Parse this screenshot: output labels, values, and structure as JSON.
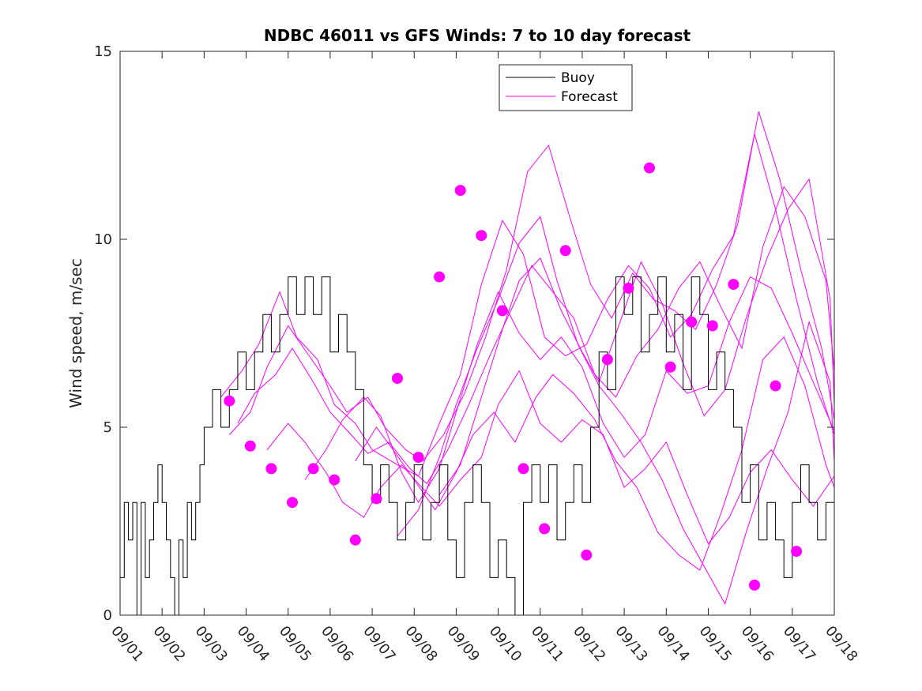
{
  "chart_data": {
    "type": "line",
    "title": "NDBC 46011 vs GFS Winds: 7 to 10 day forecast",
    "xlabel": "",
    "ylabel": "Wind speed, m/sec",
    "xlim": [
      0,
      17
    ],
    "ylim": [
      0,
      15
    ],
    "yticks": [
      0,
      5,
      10,
      15
    ],
    "yticklabels": [
      "0",
      "5",
      "10",
      "15"
    ],
    "xticks": [
      0,
      1,
      2,
      3,
      4,
      5,
      6,
      7,
      8,
      9,
      10,
      11,
      12,
      13,
      14,
      15,
      16,
      17
    ],
    "xticklabels": [
      "09/01",
      "09/02",
      "09/03",
      "09/04",
      "09/05",
      "09/06",
      "09/07",
      "09/08",
      "09/09",
      "09/10",
      "09/11",
      "09/12",
      "09/13",
      "09/14",
      "09/15",
      "09/16",
      "09/17",
      "09/18"
    ],
    "grid": false,
    "legend": {
      "location": "top-center",
      "entries": [
        "Buoy",
        "Forecast"
      ]
    },
    "colors": {
      "buoy": "#000000",
      "forecast": "#ff00ff",
      "axes": "#262626"
    },
    "series": [
      {
        "name": "Buoy",
        "style": "step",
        "x": [
          0,
          0.1,
          0.2,
          0.3,
          0.4,
          0.5,
          0.6,
          0.7,
          0.8,
          0.9,
          1.0,
          1.1,
          1.2,
          1.3,
          1.4,
          1.5,
          1.6,
          1.7,
          1.8,
          1.9,
          2.0,
          2.2,
          2.4,
          2.6,
          2.8,
          3.0,
          3.2,
          3.4,
          3.6,
          3.8,
          4.0,
          4.2,
          4.4,
          4.6,
          4.8,
          5.0,
          5.2,
          5.4,
          5.6,
          5.8,
          6.0,
          6.2,
          6.4,
          6.6,
          6.8,
          7.0,
          7.2,
          7.4,
          7.6,
          7.8,
          8.0,
          8.2,
          8.4,
          8.6,
          8.8,
          9.0,
          9.2,
          9.4,
          9.6,
          9.8,
          10.0,
          10.2,
          10.4,
          10.6,
          10.8,
          11.0,
          11.2,
          11.4,
          11.6,
          11.8,
          12.0,
          12.2,
          12.4,
          12.6,
          12.8,
          13.0,
          13.2,
          13.4,
          13.6,
          13.8,
          14.0,
          14.2,
          14.4,
          14.6,
          14.8,
          15.0,
          15.2,
          15.4,
          15.6,
          15.8,
          16.0,
          16.2,
          16.4,
          16.6,
          16.8,
          17.0
        ],
        "values": [
          1,
          3,
          2,
          3,
          0,
          3,
          1,
          2,
          3,
          4,
          3,
          2,
          1,
          0,
          2,
          1,
          3,
          2,
          3,
          4,
          5,
          6,
          5,
          6,
          7,
          6,
          7,
          8,
          7,
          8,
          9,
          8,
          9,
          8,
          9,
          7,
          8,
          7,
          6,
          4,
          3,
          4,
          3,
          2,
          3,
          4,
          2,
          3,
          4,
          2,
          1,
          3,
          4,
          3,
          1,
          2,
          1,
          0,
          3,
          4,
          3,
          4,
          2,
          3,
          4,
          3,
          5,
          7,
          6,
          9,
          8,
          9,
          7,
          8,
          9,
          7,
          8,
          6,
          9,
          8,
          6,
          7,
          6,
          5,
          3,
          4,
          2,
          3,
          2,
          1,
          3,
          4,
          3,
          2,
          3,
          4
        ]
      }
    ],
    "forecast_runs": [
      {
        "x": [
          2.4,
          2.9,
          3.3,
          3.8,
          4.2,
          4.7,
          5.1,
          5.6,
          6.0,
          6.6,
          7.1,
          7.6,
          8.1,
          8.6,
          9.1,
          9.6,
          10.1,
          10.6,
          11.1,
          11.6,
          12.1,
          12.6,
          13.1,
          13.6,
          14.1,
          14.6,
          15.1,
          15.6,
          16.1,
          16.6,
          17.0
        ],
        "y": [
          5.8,
          6.5,
          7.2,
          8.6,
          7.4,
          6.8,
          5.6,
          5.1,
          4.4,
          4.0,
          3.7,
          5.1,
          6.4,
          8.8,
          10.5,
          9.6,
          7.4,
          6.9,
          7.2,
          8.4,
          9.3,
          8.7,
          7.4,
          8.0,
          9.2,
          10.1,
          12.8,
          10.8,
          8.4,
          6.2,
          4.8
        ]
      },
      {
        "x": [
          2.6,
          3.1,
          3.5,
          4.0,
          4.5,
          5.0,
          5.4,
          5.9,
          6.3,
          6.8,
          7.2,
          7.7,
          8.2,
          8.7,
          9.2,
          9.7,
          10.2,
          10.7,
          11.2,
          11.7,
          12.2,
          12.7,
          13.2,
          13.7,
          14.2,
          14.7,
          15.2,
          15.7,
          16.2,
          16.7,
          17.0
        ],
        "y": [
          4.8,
          5.4,
          6.6,
          7.7,
          6.9,
          6.1,
          5.4,
          5.8,
          5.0,
          4.4,
          4.1,
          4.8,
          5.9,
          7.4,
          9.2,
          11.8,
          12.5,
          10.6,
          8.8,
          7.9,
          9.1,
          8.4,
          8.1,
          7.6,
          8.8,
          10.4,
          13.4,
          11.6,
          9.2,
          7.1,
          5.2
        ]
      },
      {
        "x": [
          2.8,
          3.2,
          3.7,
          4.1,
          4.6,
          5.0,
          5.5,
          5.9,
          6.4,
          6.9,
          7.3,
          7.8,
          8.3,
          8.8,
          9.3,
          9.8,
          10.3,
          10.8,
          11.3,
          11.8,
          12.3,
          12.8,
          13.3,
          13.8,
          14.3,
          14.8,
          15.3,
          15.8,
          16.3,
          16.8,
          17.0
        ],
        "y": [
          5.1,
          5.9,
          6.4,
          7.1,
          6.2,
          5.4,
          4.8,
          4.3,
          4.6,
          3.9,
          3.5,
          4.4,
          5.6,
          6.9,
          8.1,
          9.3,
          8.6,
          7.9,
          6.4,
          5.8,
          6.9,
          7.6,
          8.7,
          9.4,
          8.2,
          7.1,
          9.8,
          11.4,
          10.6,
          8.9,
          6.5
        ]
      },
      {
        "x": [
          3.5,
          4.0,
          4.4,
          4.9,
          5.3,
          5.8,
          6.2,
          6.7,
          7.1,
          7.6,
          8.1,
          8.6,
          9.0,
          9.5,
          10.0,
          10.5,
          11.0,
          11.5,
          12.0,
          12.5,
          13.0,
          13.5,
          14.0,
          14.5,
          15.0,
          15.5,
          16.0,
          16.5,
          17.0
        ],
        "y": [
          4.4,
          5.1,
          4.6,
          3.8,
          3.0,
          2.6,
          3.4,
          4.0,
          3.5,
          2.9,
          3.6,
          4.2,
          5.6,
          6.5,
          5.1,
          4.6,
          5.2,
          4.8,
          3.4,
          3.9,
          4.6,
          3.2,
          1.9,
          2.6,
          3.8,
          4.4,
          3.6,
          2.9,
          3.7
        ]
      },
      {
        "x": [
          4.4,
          4.9,
          5.3,
          5.8,
          6.2,
          6.7,
          7.1,
          7.6,
          8.0,
          8.5,
          9.0,
          9.5,
          10.0,
          10.5,
          11.0,
          11.5,
          12.0,
          12.5,
          13.0,
          13.5,
          14.0,
          14.5,
          15.0,
          15.5,
          16.0,
          16.5,
          17.0
        ],
        "y": [
          3.6,
          4.4,
          5.2,
          5.8,
          5.3,
          3.8,
          3.0,
          3.9,
          5.4,
          7.2,
          8.6,
          7.5,
          6.8,
          7.4,
          6.6,
          5.1,
          4.2,
          4.8,
          6.5,
          5.9,
          6.1,
          7.8,
          9.0,
          8.7,
          7.5,
          6.2,
          4.9
        ]
      },
      {
        "x": [
          5.6,
          6.1,
          6.5,
          7.0,
          7.5,
          8.0,
          8.4,
          8.9,
          9.4,
          9.9,
          10.3,
          10.8,
          11.3,
          11.8,
          12.3,
          12.8,
          13.3,
          13.8,
          14.3,
          14.8,
          15.3,
          15.8,
          16.3,
          16.8,
          17.0
        ],
        "y": [
          4.1,
          5.0,
          4.4,
          3.6,
          2.8,
          3.8,
          4.8,
          5.4,
          4.6,
          5.8,
          6.4,
          5.9,
          5.2,
          4.1,
          3.4,
          2.2,
          1.6,
          1.2,
          2.7,
          4.4,
          6.8,
          7.4,
          6.1,
          4.0,
          3.4
        ]
      },
      {
        "x": [
          6.6,
          7.1,
          7.6,
          8.0,
          8.5,
          9.0,
          9.5,
          10.0,
          10.4,
          10.9,
          11.4,
          11.9,
          12.4,
          12.9,
          13.4,
          13.9,
          14.4,
          14.9,
          15.4,
          15.9,
          16.4,
          16.9,
          17.0
        ],
        "y": [
          2.1,
          2.8,
          4.2,
          5.6,
          7.1,
          8.4,
          9.9,
          10.6,
          8.9,
          7.2,
          6.1,
          5.4,
          4.6,
          3.6,
          2.3,
          1.3,
          0.3,
          2.2,
          3.9,
          5.4,
          7.8,
          6.2,
          4.1
        ]
      },
      {
        "x": [
          7.6,
          8.1,
          8.6,
          9.1,
          9.5,
          10.0,
          10.5,
          11.0,
          11.4,
          11.9,
          12.4,
          12.9,
          13.4,
          13.9,
          14.4,
          14.9,
          15.4,
          15.9,
          16.4,
          16.9,
          17.0
        ],
        "y": [
          3.2,
          4.0,
          5.8,
          7.6,
          8.9,
          9.5,
          8.1,
          7.0,
          6.2,
          7.8,
          9.4,
          8.3,
          6.7,
          5.3,
          6.0,
          7.9,
          9.5,
          10.8,
          11.6,
          8.4,
          5.6
        ]
      }
    ],
    "forecast_points": {
      "x": [
        2.6,
        3.1,
        3.6,
        4.1,
        4.6,
        5.1,
        5.6,
        6.1,
        6.6,
        7.1,
        7.6,
        8.1,
        8.6,
        9.1,
        9.6,
        10.1,
        10.6,
        11.1,
        11.6,
        12.1,
        12.6,
        13.1,
        13.6,
        14.1,
        14.6,
        15.1,
        15.6,
        16.1,
        16.6,
        17.1
      ],
      "y": [
        5.7,
        4.5,
        3.9,
        3.0,
        3.9,
        3.6,
        2.0,
        3.1,
        6.3,
        4.2,
        9.0,
        11.3,
        10.1,
        8.1,
        3.9,
        2.3,
        9.7,
        1.6,
        6.8,
        8.7,
        11.9,
        6.6,
        7.8,
        7.7,
        8.8,
        0.8,
        6.1,
        1.7,
        null,
        null
      ]
    }
  }
}
